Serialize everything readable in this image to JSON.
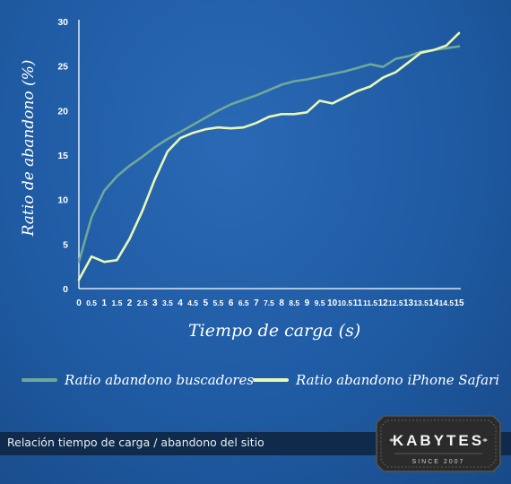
{
  "chart_data": {
    "type": "line",
    "xlabel": "Tiempo de carga (s)",
    "ylabel": "Ratio de abandono (%)",
    "xlim": [
      0,
      15
    ],
    "ylim": [
      0,
      30
    ],
    "xticks": [
      "0",
      "0.5",
      "1",
      "1.5",
      "2",
      "2.5",
      "3",
      "3.5",
      "4",
      "4.5",
      "5",
      "5.5",
      "6",
      "6.5",
      "7",
      "7.5",
      "8",
      "8.5",
      "9",
      "9.5",
      "10",
      "10.5",
      "11",
      "11.5",
      "12",
      "12.5",
      "13",
      "13.5",
      "14",
      "14.5",
      "15"
    ],
    "yticks": [
      "0",
      "5",
      "10",
      "15",
      "20",
      "25",
      "30"
    ],
    "series": [
      {
        "name": "Ratio abandono buscadores",
        "color": "#6fa89a",
        "points": [
          [
            0,
            3
          ],
          [
            0.5,
            8
          ],
          [
            1,
            11
          ],
          [
            1.5,
            12.6
          ],
          [
            2,
            13.8
          ],
          [
            2.5,
            14.8
          ],
          [
            3,
            15.9
          ],
          [
            3.5,
            16.8
          ],
          [
            4,
            17.6
          ],
          [
            4.5,
            18.4
          ],
          [
            5,
            19.2
          ],
          [
            5.5,
            20
          ],
          [
            6,
            20.7
          ],
          [
            6.5,
            21.2
          ],
          [
            7,
            21.7
          ],
          [
            7.5,
            22.3
          ],
          [
            8,
            22.9
          ],
          [
            8.5,
            23.3
          ],
          [
            9,
            23.5
          ],
          [
            9.5,
            23.8
          ],
          [
            10,
            24.1
          ],
          [
            10.5,
            24.4
          ],
          [
            11,
            24.8
          ],
          [
            11.5,
            25.2
          ],
          [
            12,
            24.9
          ],
          [
            12.5,
            25.8
          ],
          [
            13,
            26.1
          ],
          [
            13.5,
            26.6
          ],
          [
            14,
            26.8
          ],
          [
            14.5,
            27
          ],
          [
            15,
            27.2
          ]
        ]
      },
      {
        "name": "Ratio abandono iPhone Safari",
        "color": "#e9f7b5",
        "points": [
          [
            0,
            1
          ],
          [
            0.5,
            3.6
          ],
          [
            1,
            3
          ],
          [
            1.5,
            3.2
          ],
          [
            2,
            5.6
          ],
          [
            2.5,
            8.7
          ],
          [
            3,
            12.3
          ],
          [
            3.5,
            15.4
          ],
          [
            4,
            16.9
          ],
          [
            4.5,
            17.5
          ],
          [
            5,
            17.9
          ],
          [
            5.5,
            18.1
          ],
          [
            6,
            18
          ],
          [
            6.5,
            18.1
          ],
          [
            7,
            18.6
          ],
          [
            7.5,
            19.3
          ],
          [
            8,
            19.6
          ],
          [
            8.5,
            19.6
          ],
          [
            9,
            19.8
          ],
          [
            9.5,
            21.1
          ],
          [
            10,
            20.8
          ],
          [
            10.5,
            21.5
          ],
          [
            11,
            22.2
          ],
          [
            11.5,
            22.7
          ],
          [
            12,
            23.7
          ],
          [
            12.5,
            24.3
          ],
          [
            13,
            25.4
          ],
          [
            13.5,
            26.5
          ],
          [
            14,
            26.8
          ],
          [
            14.5,
            27.3
          ],
          [
            15,
            28.7
          ]
        ]
      }
    ],
    "grid": false,
    "legend": "bottom"
  },
  "footer": {
    "caption": "Relación tiempo de carga / abandono del sitio"
  },
  "brand": {
    "name": "KABYTES",
    "tagline": "SINCE 2007"
  }
}
